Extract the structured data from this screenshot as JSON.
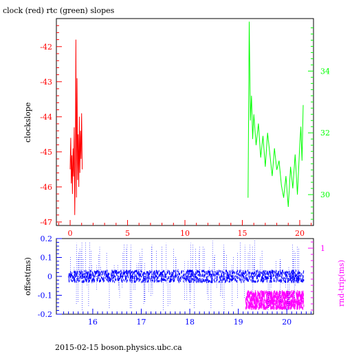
{
  "title": "clock (red) rtc (green) slopes",
  "footer": "2015-02-15 boson.physics.ubc.ca",
  "colors": {
    "clock": "#ff0000",
    "rtc": "#00ff00",
    "offset": "#0000ff",
    "roundtrip": "#ff00ff",
    "frame": "#000000"
  },
  "chart_data": [
    {
      "type": "line",
      "title": "clock (red) rtc (green) slopes",
      "xlabel": "",
      "ylabel": "clockslope",
      "xlim": [
        -1.2,
        21.2
      ],
      "ylim": [
        -47.1,
        -41.2
      ],
      "y2lim": [
        29.0,
        35.7
      ],
      "x_ticks": [
        "0",
        "5",
        "10",
        "15",
        "20"
      ],
      "y_ticks": [
        "-42",
        "-43",
        "-44",
        "-45",
        "-46",
        "-47"
      ],
      "y2_ticks": [
        "34",
        "32",
        "30"
      ],
      "grid": false,
      "series": [
        {
          "name": "clock (red)",
          "axis": "left",
          "x": [
            0.0,
            0.05,
            0.1,
            0.15,
            0.2,
            0.25,
            0.3,
            0.35,
            0.4,
            0.45,
            0.5,
            0.55,
            0.6,
            0.65,
            0.7,
            0.75,
            0.8,
            0.85,
            0.9,
            0.95,
            1.0,
            1.05
          ],
          "y": [
            -45.5,
            -44.6,
            -45.9,
            -45.1,
            -46.2,
            -44.9,
            -45.7,
            -44.3,
            -46.8,
            -45.4,
            -41.8,
            -46.3,
            -42.9,
            -45.8,
            -44.5,
            -46.0,
            -44.0,
            -45.6,
            -44.4,
            -45.2,
            -43.9,
            -45.5
          ]
        },
        {
          "name": "rtc (green)",
          "axis": "right",
          "x": [
            15.5,
            15.6,
            15.7,
            15.8,
            15.9,
            16.0,
            16.2,
            16.4,
            16.6,
            16.8,
            17.0,
            17.2,
            17.4,
            17.6,
            17.8,
            18.0,
            18.2,
            18.4,
            18.6,
            18.8,
            19.0,
            19.2,
            19.4,
            19.6,
            19.8,
            20.0,
            20.1,
            20.2,
            20.3
          ],
          "y": [
            29.9,
            35.6,
            32.4,
            33.2,
            31.8,
            32.6,
            31.6,
            32.3,
            31.2,
            31.9,
            30.9,
            32.0,
            31.3,
            30.6,
            31.5,
            30.8,
            31.1,
            30.3,
            29.9,
            30.6,
            29.6,
            30.9,
            30.2,
            31.3,
            30.0,
            31.6,
            32.2,
            31.1,
            32.9
          ]
        }
      ]
    },
    {
      "type": "scatter",
      "title": "",
      "xlabel": "",
      "ylabel": "offset(ms)",
      "y2label": "rnd-trip(ms)",
      "xlim": [
        15.25,
        20.55
      ],
      "ylim": [
        -0.2,
        0.2
      ],
      "x_ticks": [
        "16",
        "17",
        "18",
        "19",
        "20"
      ],
      "y_ticks": [
        "0.2",
        "0.1",
        "0",
        "-0.1",
        "-0.2"
      ],
      "y2_ticks": [
        "1"
      ],
      "grid": false,
      "series": [
        {
          "name": "offset",
          "axis": "left",
          "x_range": [
            15.5,
            20.35
          ],
          "y_center": 0.0,
          "y_band": 0.03
        },
        {
          "name": "rnd-trip",
          "axis": "right",
          "x_range": [
            19.15,
            20.35
          ],
          "y_center": -0.125,
          "y_band": 0.045
        }
      ]
    }
  ]
}
